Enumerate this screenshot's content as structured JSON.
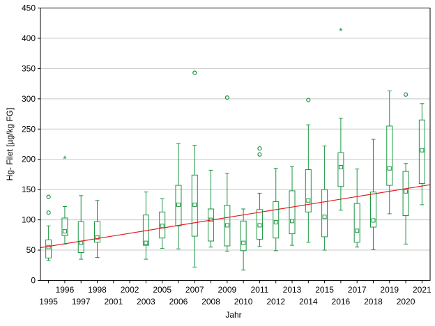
{
  "chart_data": {
    "type": "boxplot",
    "title": "",
    "xlabel": "Jahr",
    "ylabel": "Hg- Filet [µg/kg FG]",
    "ylim": [
      0,
      450
    ],
    "yticks": [
      0,
      50,
      100,
      150,
      200,
      250,
      300,
      350,
      400,
      450
    ],
    "ytick_labels": [
      "0",
      "50",
      "100",
      "150",
      "200",
      "250",
      "300",
      "350",
      "400",
      "450"
    ],
    "grid": true,
    "categories": [
      "1995",
      "1996",
      "1997",
      "1998",
      "2001",
      "2002",
      "2003",
      "2005",
      "2006",
      "2007",
      "2008",
      "2009",
      "2010",
      "2011",
      "2012",
      "2013",
      "2014",
      "2015",
      "2016",
      "2017",
      "2018",
      "2019",
      "2020",
      "2021"
    ],
    "label_rows": [
      "low",
      "high",
      "low",
      "high",
      "low",
      "high",
      "low",
      "high",
      "low",
      "high",
      "low",
      "high",
      "low",
      "high",
      "low",
      "high",
      "low",
      "high",
      "low",
      "high",
      "low",
      "high",
      "low",
      "high"
    ],
    "box_color": "#1a9641",
    "trend_color": "#e31a1c",
    "boxes": [
      {
        "year": "1995",
        "whisker_low": 33,
        "q1": 37,
        "median": 55,
        "q3": 67,
        "whisker_high": 90,
        "outliers": [
          112,
          138
        ],
        "extremes": []
      },
      {
        "year": "1996",
        "whisker_low": 60,
        "q1": 74,
        "median": 81,
        "q3": 103,
        "whisker_high": 122,
        "outliers": [],
        "extremes": [
          202
        ]
      },
      {
        "year": "1997",
        "whisker_low": 35,
        "q1": 46,
        "median": 62,
        "q3": 97,
        "whisker_high": 140,
        "outliers": [],
        "extremes": []
      },
      {
        "year": "1998",
        "whisker_low": 38,
        "q1": 63,
        "median": 71,
        "q3": 97,
        "whisker_high": 132,
        "outliers": [],
        "extremes": []
      },
      {
        "year": "2001",
        "whisker_low": null,
        "q1": null,
        "median": null,
        "q3": null,
        "whisker_high": null,
        "outliers": [],
        "extremes": []
      },
      {
        "year": "2002",
        "whisker_low": null,
        "q1": null,
        "median": null,
        "q3": null,
        "whisker_high": null,
        "outliers": [],
        "extremes": []
      },
      {
        "year": "2003",
        "whisker_low": 35,
        "q1": 58,
        "median": 62,
        "q3": 108,
        "whisker_high": 146,
        "outliers": [],
        "extremes": []
      },
      {
        "year": "2005",
        "whisker_low": 53,
        "q1": 70,
        "median": 90,
        "q3": 113,
        "whisker_high": 135,
        "outliers": [],
        "extremes": []
      },
      {
        "year": "2006",
        "whisker_low": 52,
        "q1": 90,
        "median": 125,
        "q3": 157,
        "whisker_high": 226,
        "outliers": [],
        "extremes": []
      },
      {
        "year": "2007",
        "whisker_low": 22,
        "q1": 73,
        "median": 125,
        "q3": 174,
        "whisker_high": 223,
        "outliers": [
          343
        ],
        "extremes": []
      },
      {
        "year": "2008",
        "whisker_low": 55,
        "q1": 65,
        "median": 100,
        "q3": 118,
        "whisker_high": 182,
        "outliers": [],
        "extremes": []
      },
      {
        "year": "2009",
        "whisker_low": 48,
        "q1": 57,
        "median": 91,
        "q3": 124,
        "whisker_high": 177,
        "outliers": [
          302
        ],
        "extremes": []
      },
      {
        "year": "2010",
        "whisker_low": 17,
        "q1": 49,
        "median": 62,
        "q3": 98,
        "whisker_high": 118,
        "outliers": [],
        "extremes": []
      },
      {
        "year": "2011",
        "whisker_low": 56,
        "q1": 68,
        "median": 91,
        "q3": 117,
        "whisker_high": 144,
        "outliers": [
          208,
          218
        ],
        "extremes": []
      },
      {
        "year": "2012",
        "whisker_low": 49,
        "q1": 70,
        "median": 96,
        "q3": 130,
        "whisker_high": 185,
        "outliers": [],
        "extremes": []
      },
      {
        "year": "2013",
        "whisker_low": 58,
        "q1": 77,
        "median": 98,
        "q3": 148,
        "whisker_high": 188,
        "outliers": [],
        "extremes": []
      },
      {
        "year": "2014",
        "whisker_low": 63,
        "q1": 113,
        "median": 132,
        "q3": 183,
        "whisker_high": 257,
        "outliers": [
          298
        ],
        "extremes": []
      },
      {
        "year": "2015",
        "whisker_low": 50,
        "q1": 72,
        "median": 105,
        "q3": 150,
        "whisker_high": 222,
        "outliers": [],
        "extremes": []
      },
      {
        "year": "2016",
        "whisker_low": 116,
        "q1": 155,
        "median": 187,
        "q3": 211,
        "whisker_high": 268,
        "outliers": [],
        "extremes": [
          413
        ]
      },
      {
        "year": "2017",
        "whisker_low": 55,
        "q1": 63,
        "median": 82,
        "q3": 127,
        "whisker_high": 184,
        "outliers": [],
        "extremes": []
      },
      {
        "year": "2018",
        "whisker_low": 51,
        "q1": 88,
        "median": 99,
        "q3": 146,
        "whisker_high": 233,
        "outliers": [],
        "extremes": []
      },
      {
        "year": "2019",
        "whisker_low": 110,
        "q1": 157,
        "median": 185,
        "q3": 255,
        "whisker_high": 313,
        "outliers": [],
        "extremes": []
      },
      {
        "year": "2020",
        "whisker_low": 60,
        "q1": 107,
        "median": 147,
        "q3": 180,
        "whisker_high": 193,
        "outliers": [
          307
        ],
        "extremes": []
      },
      {
        "year": "2021",
        "whisker_low": 125,
        "q1": 160,
        "median": 215,
        "q3": 265,
        "whisker_high": 292,
        "outliers": [],
        "extremes": []
      }
    ],
    "trend_line": {
      "y_start": 54,
      "y_end": 158
    }
  }
}
